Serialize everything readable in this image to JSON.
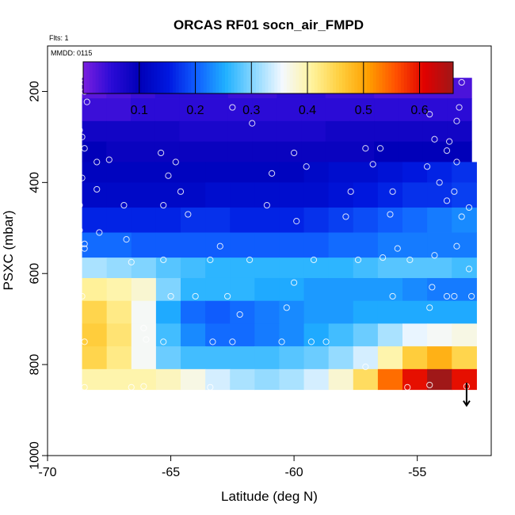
{
  "chart_data": {
    "type": "heatmap",
    "title": "ORCAS RF01 socn_air_FMPD",
    "annotations": [
      "Flts: 1",
      "MMDD: 0115"
    ],
    "xlabel": "Latitude (deg N)",
    "ylabel": "PSXC (mbar)",
    "xlim": [
      -70,
      -52
    ],
    "ylim": [
      1000,
      100
    ],
    "x_ticks": [
      -70,
      -65,
      -60,
      -55
    ],
    "y_ticks": [
      200,
      400,
      600,
      800,
      1000
    ],
    "colorbar": {
      "range": [
        0.0,
        0.66
      ],
      "ticks": [
        0.1,
        0.2,
        0.3,
        0.4,
        0.5,
        0.6
      ],
      "colors": [
        "#7a1fe0",
        "#2a0bd6",
        "#0000b8",
        "#0018e0",
        "#1060ff",
        "#20b0ff",
        "#8ad8ff",
        "#f4f8ff",
        "#fff4a0",
        "#ffd040",
        "#ffa000",
        "#ff5000",
        "#e00000",
        "#a01818"
      ]
    },
    "bands": [
      {
        "p_top": 170,
        "p_bot": 215,
        "x0": -68.6,
        "x1": -52.8,
        "values": [
          0.02,
          0.03,
          0.04,
          0.05,
          0.05,
          0.05,
          0.04,
          0.04,
          0.05,
          0.05,
          0.04,
          0.04,
          0.03,
          0.03,
          0.03,
          0.03
        ]
      },
      {
        "p_top": 215,
        "p_bot": 265,
        "x0": -68.6,
        "x1": -52.8,
        "values": [
          0.04,
          0.04,
          0.05,
          0.05,
          0.05,
          0.05,
          0.05,
          0.05,
          0.05,
          0.05,
          0.05,
          0.05,
          0.05,
          0.05,
          0.05,
          0.05
        ]
      },
      {
        "p_top": 265,
        "p_bot": 310,
        "x0": -68.6,
        "x1": -52.8,
        "values": [
          0.08,
          0.08,
          0.08,
          0.08,
          0.07,
          0.07,
          0.07,
          0.07,
          0.07,
          0.07,
          0.08,
          0.08,
          0.08,
          0.08,
          0.08,
          0.08
        ]
      },
      {
        "p_top": 310,
        "p_bot": 355,
        "x0": -68.6,
        "x1": -52.8,
        "values": [
          0.1,
          0.09,
          0.09,
          0.09,
          0.09,
          0.09,
          0.09,
          0.09,
          0.09,
          0.09,
          0.09,
          0.09,
          0.1,
          0.1,
          0.1,
          0.1
        ]
      },
      {
        "p_top": 355,
        "p_bot": 400,
        "x0": -68.6,
        "x1": -52.6,
        "values": [
          0.11,
          0.11,
          0.11,
          0.11,
          0.11,
          0.11,
          0.11,
          0.11,
          0.11,
          0.12,
          0.13,
          0.13,
          0.14,
          0.15,
          0.16,
          0.17
        ]
      },
      {
        "p_top": 400,
        "p_bot": 455,
        "x0": -68.6,
        "x1": -52.6,
        "values": [
          0.12,
          0.12,
          0.12,
          0.12,
          0.12,
          0.13,
          0.13,
          0.13,
          0.13,
          0.13,
          0.14,
          0.15,
          0.16,
          0.17,
          0.17,
          0.18
        ]
      },
      {
        "p_top": 455,
        "p_bot": 510,
        "x0": -68.6,
        "x1": -52.6,
        "values": [
          0.16,
          0.16,
          0.16,
          0.16,
          0.17,
          0.17,
          0.16,
          0.16,
          0.16,
          0.17,
          0.18,
          0.19,
          0.2,
          0.21,
          0.22,
          0.23
        ]
      },
      {
        "p_top": 510,
        "p_bot": 565,
        "x0": -68.6,
        "x1": -52.6,
        "values": [
          0.21,
          0.21,
          0.2,
          0.2,
          0.2,
          0.2,
          0.2,
          0.2,
          0.2,
          0.2,
          0.21,
          0.21,
          0.22,
          0.22,
          0.22,
          0.22
        ]
      },
      {
        "p_top": 565,
        "p_bot": 610,
        "x0": -68.6,
        "x1": -52.6,
        "values": [
          0.32,
          0.31,
          0.3,
          0.28,
          0.27,
          0.26,
          0.26,
          0.26,
          0.26,
          0.26,
          0.26,
          0.27,
          0.28,
          0.28,
          0.28,
          0.27
        ]
      },
      {
        "p_top": 610,
        "p_bot": 660,
        "x0": -68.6,
        "x1": -52.6,
        "values": [
          0.41,
          0.4,
          0.38,
          0.3,
          0.26,
          0.26,
          0.26,
          0.25,
          0.25,
          0.24,
          0.24,
          0.24,
          0.24,
          0.23,
          0.22,
          0.22
        ]
      },
      {
        "p_top": 660,
        "p_bot": 710,
        "x0": -68.6,
        "x1": -52.6,
        "values": [
          0.45,
          0.42,
          0.36,
          0.25,
          0.21,
          0.2,
          0.21,
          0.22,
          0.23,
          0.24,
          0.24,
          0.25,
          0.25,
          0.25,
          0.25,
          0.25
        ]
      },
      {
        "p_top": 710,
        "p_bot": 760,
        "x0": -68.6,
        "x1": -52.6,
        "values": [
          0.46,
          0.43,
          0.36,
          0.27,
          0.23,
          0.21,
          0.21,
          0.22,
          0.23,
          0.25,
          0.27,
          0.29,
          0.32,
          0.35,
          0.36,
          0.37
        ]
      },
      {
        "p_top": 760,
        "p_bot": 810,
        "x0": -68.6,
        "x1": -52.6,
        "values": [
          0.45,
          0.42,
          0.36,
          0.29,
          0.27,
          0.27,
          0.27,
          0.27,
          0.28,
          0.29,
          0.31,
          0.34,
          0.4,
          0.46,
          0.49,
          0.45
        ]
      },
      {
        "p_top": 810,
        "p_bot": 855,
        "x0": -68.6,
        "x1": -52.6,
        "values": [
          0.4,
          0.4,
          0.4,
          0.39,
          0.37,
          0.34,
          0.32,
          0.31,
          0.32,
          0.34,
          0.38,
          0.44,
          0.54,
          0.6,
          0.66,
          0.6
        ]
      }
    ],
    "points": [
      [
        -68.5,
        180
      ],
      [
        -68.0,
        180
      ],
      [
        -67.5,
        180
      ],
      [
        -67.0,
        180
      ],
      [
        -66.4,
        180
      ],
      [
        -65.8,
        180
      ],
      [
        -65.3,
        180
      ],
      [
        -64.7,
        180
      ],
      [
        -64.2,
        180
      ],
      [
        -63.7,
        180
      ],
      [
        -63.2,
        183
      ],
      [
        -62.9,
        190
      ],
      [
        -62.6,
        195
      ],
      [
        -60.2,
        190
      ],
      [
        -59.8,
        180
      ],
      [
        -59.2,
        180
      ],
      [
        -58.6,
        180
      ],
      [
        -58.0,
        180
      ],
      [
        -57.4,
        180
      ],
      [
        -56.8,
        180
      ],
      [
        -56.2,
        180
      ],
      [
        -55.6,
        182
      ],
      [
        -55.0,
        188
      ],
      [
        -54.5,
        195
      ],
      [
        -53.2,
        180
      ],
      [
        -68.5,
        200
      ],
      [
        -68.4,
        223
      ],
      [
        -62.5,
        235
      ],
      [
        -53.3,
        235
      ],
      [
        -54.5,
        250
      ],
      [
        -61.7,
        270
      ],
      [
        -53.4,
        265
      ],
      [
        -68.7,
        285
      ],
      [
        -54.3,
        305
      ],
      [
        -68.6,
        300
      ],
      [
        -53.7,
        310
      ],
      [
        -68.5,
        325
      ],
      [
        -57.1,
        325
      ],
      [
        -56.5,
        325
      ],
      [
        -65.4,
        335
      ],
      [
        -53.8,
        330
      ],
      [
        -60.0,
        335
      ],
      [
        -68.0,
        355
      ],
      [
        -67.5,
        350
      ],
      [
        -64.8,
        355
      ],
      [
        -56.8,
        360
      ],
      [
        -53.4,
        355
      ],
      [
        -59.5,
        365
      ],
      [
        -54.6,
        365
      ],
      [
        -60.9,
        380
      ],
      [
        -65.1,
        385
      ],
      [
        -68.6,
        390
      ],
      [
        -54.1,
        400
      ],
      [
        -68.0,
        415
      ],
      [
        -64.6,
        420
      ],
      [
        -57.7,
        420
      ],
      [
        -56.0,
        420
      ],
      [
        -53.5,
        420
      ],
      [
        -53.8,
        440
      ],
      [
        -66.9,
        450
      ],
      [
        -65.3,
        450
      ],
      [
        -61.1,
        450
      ],
      [
        -68.7,
        450
      ],
      [
        -57.9,
        475
      ],
      [
        -56.1,
        470
      ],
      [
        -64.3,
        470
      ],
      [
        -59.9,
        485
      ],
      [
        -52.9,
        455
      ],
      [
        -53.2,
        475
      ],
      [
        -68.7,
        505
      ],
      [
        -67.9,
        510
      ],
      [
        -66.8,
        525
      ],
      [
        -68.5,
        535
      ],
      [
        -63.0,
        540
      ],
      [
        -68.5,
        545
      ],
      [
        -55.8,
        545
      ],
      [
        -53.4,
        540
      ],
      [
        -66.6,
        575
      ],
      [
        -65.3,
        570
      ],
      [
        -63.4,
        570
      ],
      [
        -61.8,
        570
      ],
      [
        -59.2,
        570
      ],
      [
        -57.4,
        570
      ],
      [
        -56.4,
        565
      ],
      [
        -55.3,
        570
      ],
      [
        -54.3,
        560
      ],
      [
        -52.9,
        590
      ],
      [
        -60.0,
        620
      ],
      [
        -54.4,
        630
      ],
      [
        -68.6,
        650
      ],
      [
        -65.0,
        650
      ],
      [
        -64.0,
        650
      ],
      [
        -62.7,
        650
      ],
      [
        -56.0,
        650
      ],
      [
        -53.8,
        650
      ],
      [
        -53.5,
        650
      ],
      [
        -52.8,
        650
      ],
      [
        -60.3,
        675
      ],
      [
        -54.5,
        675
      ],
      [
        -62.2,
        690
      ],
      [
        -68.5,
        750
      ],
      [
        -66.1,
        720
      ],
      [
        -66.0,
        745
      ],
      [
        -65.3,
        750
      ],
      [
        -63.3,
        750
      ],
      [
        -62.5,
        750
      ],
      [
        -60.5,
        750
      ],
      [
        -59.3,
        750
      ],
      [
        -58.7,
        750
      ],
      [
        -68.5,
        850
      ],
      [
        -66.6,
        850
      ],
      [
        -66.1,
        848
      ],
      [
        -63.4,
        850
      ],
      [
        -55.4,
        850
      ],
      [
        -54.5,
        845
      ],
      [
        -53.0,
        848
      ],
      [
        -57.1,
        805
      ]
    ],
    "arrow": {
      "x": -53.0,
      "p_start": 840,
      "p_end": 890
    }
  }
}
